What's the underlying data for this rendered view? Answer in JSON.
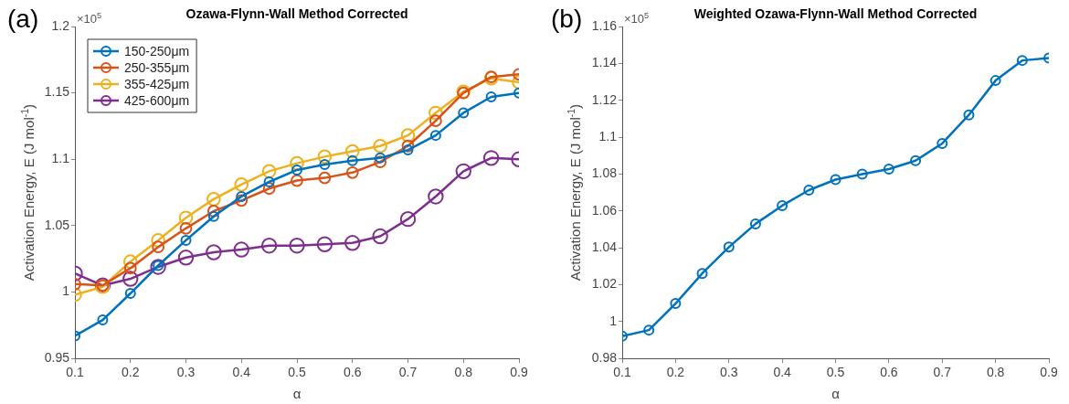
{
  "chart_data": [
    {
      "type": "line",
      "title": "Ozawa-Flynn-Wall Method Corrected",
      "xlabel": "α",
      "ylabel": "Activation Energy, E (J mol$^{-1}$)",
      "annotations": [
        "(a)",
        "×10$^{5}$"
      ],
      "x": [
        0.1,
        0.15,
        0.2,
        0.25,
        0.3,
        0.35,
        0.4,
        0.45,
        0.5,
        0.55,
        0.6,
        0.65,
        0.7,
        0.75,
        0.8,
        0.85,
        0.9
      ],
      "series": [
        {
          "name": "150-250μm",
          "color": "#0072bd",
          "values": [
            0.967,
            0.979,
            0.999,
            1.02,
            1.039,
            1.057,
            1.072,
            1.083,
            1.092,
            1.096,
            1.099,
            1.101,
            1.107,
            1.118,
            1.135,
            1.147,
            1.15
          ]
        },
        {
          "name": "250-355μm",
          "color": "#d95319",
          "values": [
            1.006,
            1.005,
            1.018,
            1.034,
            1.048,
            1.061,
            1.069,
            1.078,
            1.084,
            1.086,
            1.09,
            1.098,
            1.11,
            1.129,
            1.15,
            1.162,
            1.164
          ]
        },
        {
          "name": "355-425μm",
          "color": "#edb120",
          "values": [
            0.998,
            1.004,
            1.023,
            1.039,
            1.056,
            1.07,
            1.081,
            1.091,
            1.097,
            1.102,
            1.106,
            1.11,
            1.118,
            1.135,
            1.151,
            1.161,
            1.158
          ]
        },
        {
          "name": "425-600μm",
          "color": "#7e2f8e",
          "values": [
            1.014,
            1.005,
            1.01,
            1.019,
            1.026,
            1.03,
            1.032,
            1.035,
            1.035,
            1.036,
            1.037,
            1.042,
            1.055,
            1.072,
            1.091,
            1.101,
            1.1
          ]
        }
      ],
      "xlim": [
        0.1,
        0.9
      ],
      "xticks": [
        0.1,
        0.2,
        0.3,
        0.4,
        0.5,
        0.6,
        0.7,
        0.8,
        0.9
      ],
      "ylim": [
        0.95,
        1.2
      ],
      "yticks": [
        0.95,
        1,
        1.05,
        1.1,
        1.15,
        1.2
      ],
      "grid": false,
      "legend": "top left",
      "marker": "circle",
      "line_style": "solid"
    },
    {
      "type": "line",
      "title": "Weighted Ozawa-Flynn-Wall Method Corrected",
      "xlabel": "α",
      "ylabel": "Activation Energy, E (J mol$^{-1}$)",
      "annotations": [
        "(b)",
        "×10$^{5}$"
      ],
      "x": [
        0.1,
        0.15,
        0.2,
        0.25,
        0.3,
        0.35,
        0.4,
        0.45,
        0.5,
        0.55,
        0.6,
        0.65,
        0.7,
        0.75,
        0.8,
        0.85,
        0.9
      ],
      "series": [
        {
          "color": "#0072bd",
          "values": [
            0.9921,
            0.9954,
            1.0098,
            1.0261,
            1.0404,
            1.053,
            1.0629,
            1.0713,
            1.077,
            1.08,
            1.0827,
            1.0873,
            1.0966,
            1.1121,
            1.1307,
            1.1416,
            1.1429
          ]
        }
      ],
      "xlim": [
        0.1,
        0.9
      ],
      "xticks": [
        0.1,
        0.2,
        0.3,
        0.4,
        0.5,
        0.6,
        0.7,
        0.8,
        0.9
      ],
      "ylim": [
        0.98,
        1.16
      ],
      "yticks": [
        0.98,
        1,
        1.02,
        1.04,
        1.06,
        1.08,
        1.1,
        1.12,
        1.14,
        1.16
      ],
      "grid": false,
      "marker": "circle",
      "line_style": "solid"
    }
  ]
}
